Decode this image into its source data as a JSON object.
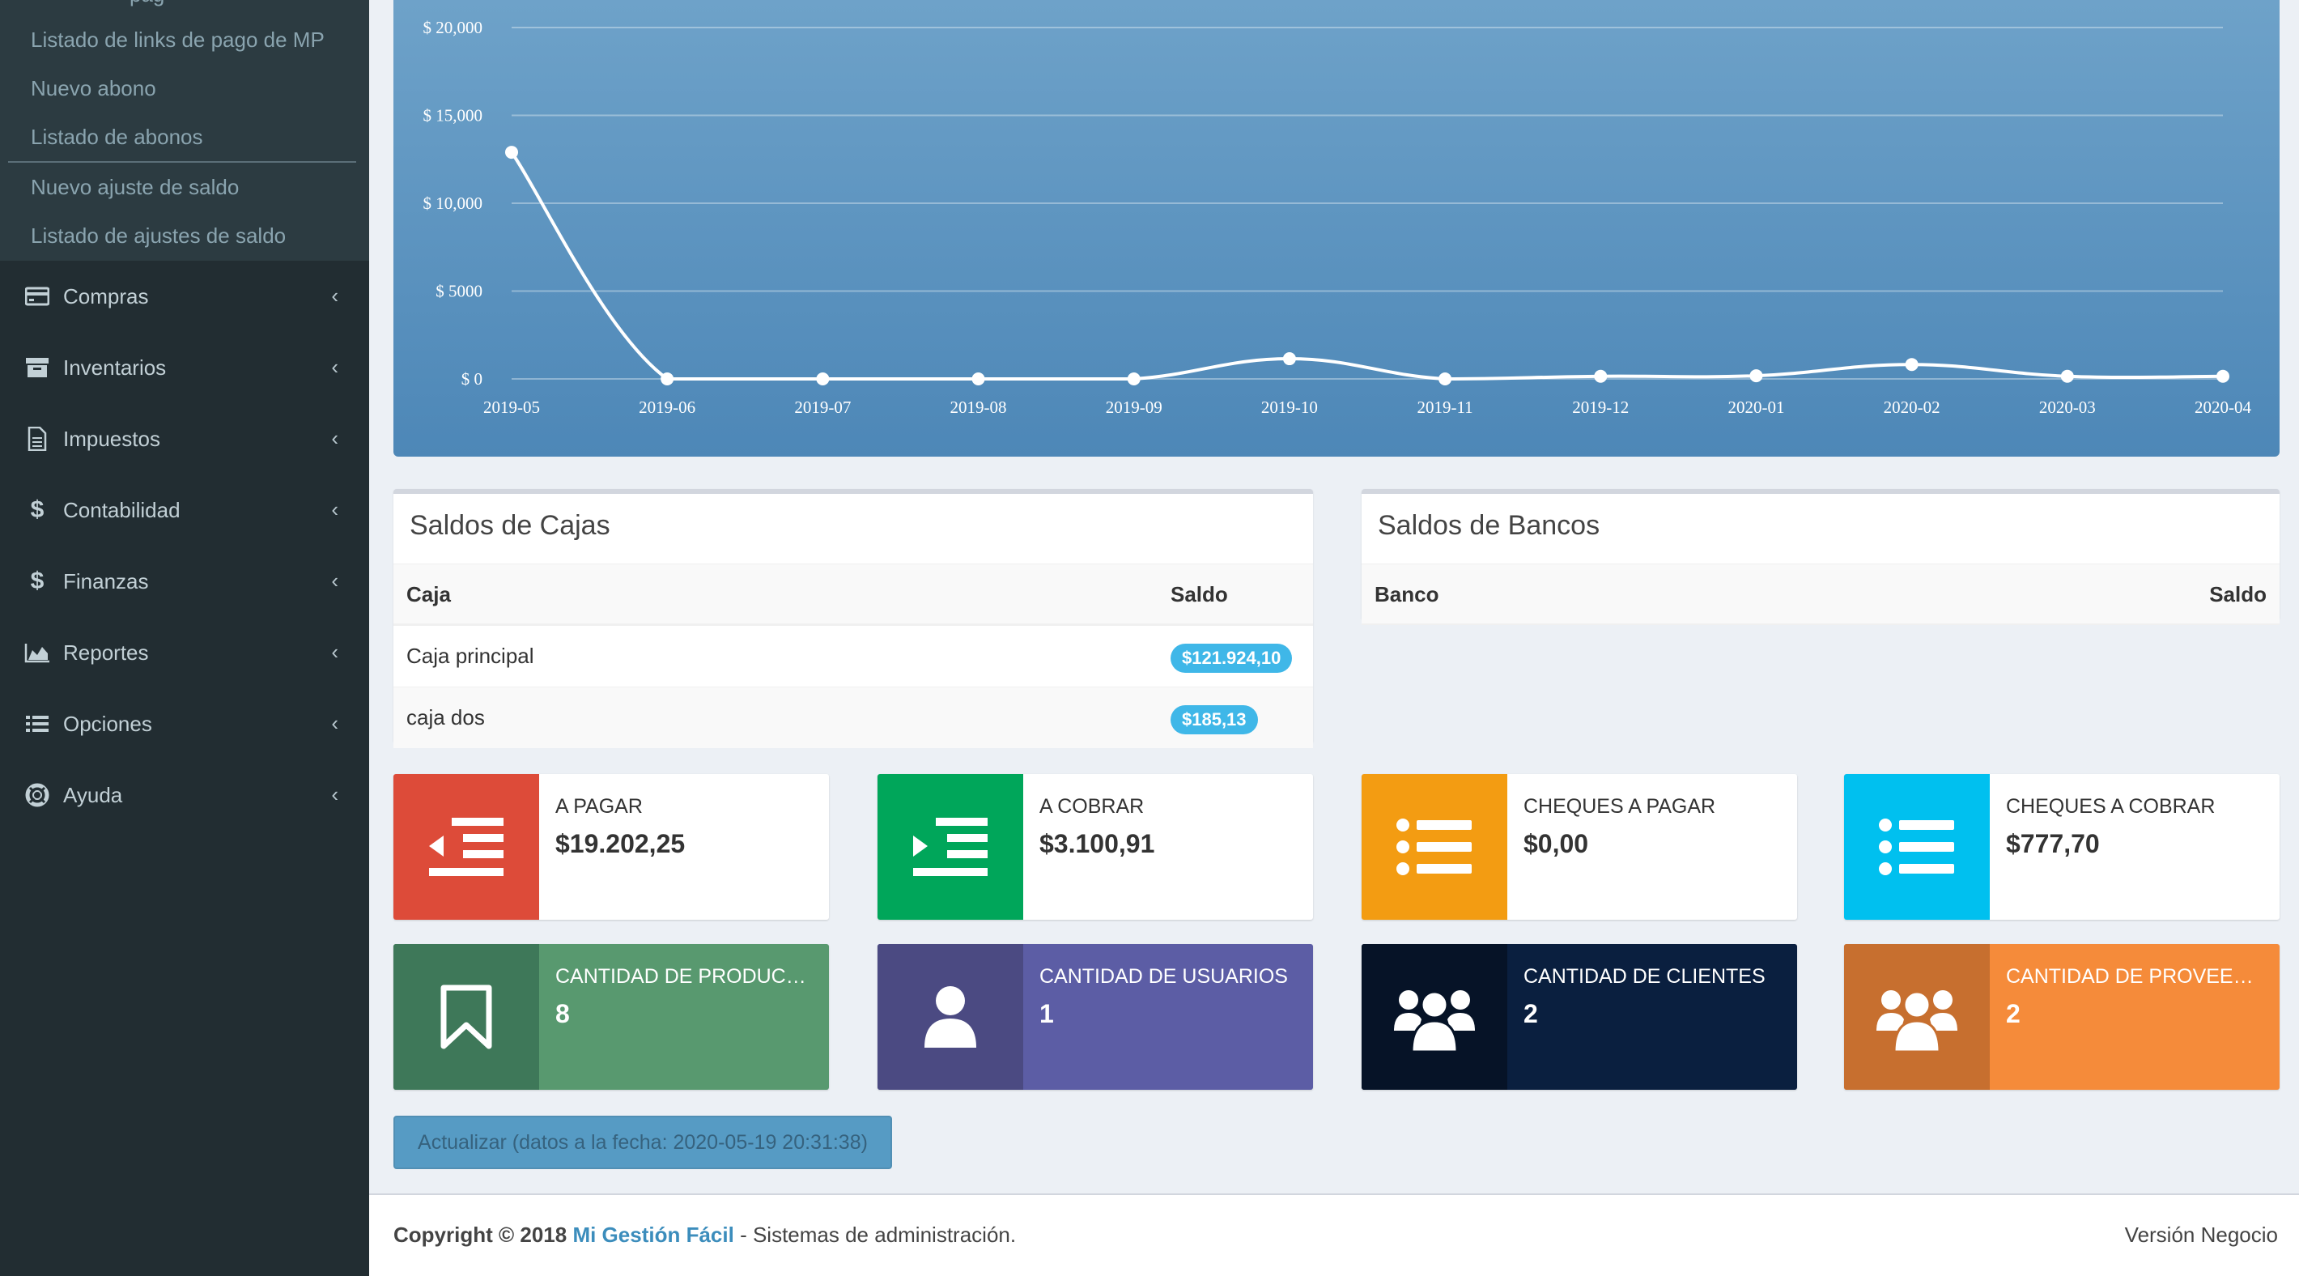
{
  "sidebar": {
    "submenu_partial": "pag",
    "submenu_items": [
      "Listado de links de pago de MP",
      "Nuevo abono",
      "Listado de abonos",
      "Nuevo ajuste de saldo",
      "Listado de ajustes de saldo"
    ],
    "menu": [
      {
        "label": "Compras",
        "icon": "credit-card-icon"
      },
      {
        "label": "Inventarios",
        "icon": "archive-icon"
      },
      {
        "label": "Impuestos",
        "icon": "file-text-icon"
      },
      {
        "label": "Contabilidad",
        "icon": "dollar-icon"
      },
      {
        "label": "Finanzas",
        "icon": "dollar-icon"
      },
      {
        "label": "Reportes",
        "icon": "area-chart-icon"
      },
      {
        "label": "Opciones",
        "icon": "list-icon"
      },
      {
        "label": "Ayuda",
        "icon": "life-ring-icon"
      }
    ]
  },
  "chart_data": {
    "type": "line",
    "categories": [
      "2019-05",
      "2019-06",
      "2019-07",
      "2019-08",
      "2019-09",
      "2019-10",
      "2019-11",
      "2019-12",
      "2020-01",
      "2020-02",
      "2020-03",
      "2020-04"
    ],
    "values": [
      12900,
      0,
      0,
      0,
      0,
      1150,
      0,
      150,
      180,
      820,
      150,
      150
    ],
    "yticks": [
      "$ 0",
      "$ 5000",
      "$ 10,000",
      "$ 15,000",
      "$ 20,000"
    ],
    "ytick_values": [
      0,
      5000,
      10000,
      15000,
      20000
    ],
    "ylim": [
      0,
      20000
    ],
    "grid": true,
    "colors": {
      "line": "#ffffff",
      "grid": "#ffffff"
    }
  },
  "cajas": {
    "title": "Saldos de Cajas",
    "headers": [
      "Caja",
      "Saldo"
    ],
    "rows": [
      {
        "name": "Caja principal",
        "saldo": "$121.924,10"
      },
      {
        "name": "caja dos",
        "saldo": "$185,13"
      }
    ]
  },
  "bancos": {
    "title": "Saldos de Bancos",
    "headers": [
      "Banco",
      "Saldo"
    ]
  },
  "info_boxes": [
    {
      "text": "A PAGAR",
      "number": "$19.202,25",
      "icon": "outdent-icon",
      "color": "#dd4b39"
    },
    {
      "text": "A COBRAR",
      "number": "$3.100,91",
      "icon": "indent-icon",
      "color": "#00a65a"
    },
    {
      "text": "CHEQUES A PAGAR",
      "number": "$0,00",
      "icon": "list-ul-icon",
      "color": "#f39c12"
    },
    {
      "text": "CHEQUES A COBRAR",
      "number": "$777,70",
      "icon": "list-ul-icon",
      "color": "#00c0ef"
    },
    {
      "text": "CANTIDAD DE PRODUCTOS",
      "number": "8",
      "icon": "bookmark-icon",
      "color": "#3d9970",
      "bg": "#4e9a72"
    },
    {
      "text": "CANTIDAD DE USUARIOS",
      "number": "1",
      "icon": "user-icon",
      "color": "#555299",
      "bg": "#5a5ca8"
    },
    {
      "text": "CANTIDAD DE CLIENTES",
      "number": "2",
      "icon": "users-icon",
      "color": "#001f3f",
      "bg": "#0a1f3f"
    },
    {
      "text": "CANTIDAD DE PROVEED…",
      "number": "2",
      "icon": "users-icon",
      "color": "#ff851b",
      "bg": "#f58b3a"
    }
  ],
  "refresh_button": "Actualizar (datos a la fecha: 2020-05-19 20:31:38)",
  "footer": {
    "copyright": "Copyright © 2018",
    "brand": "Mi Gestión Fácil",
    "tagline": "- Sistemas de administración.",
    "version": "Versión Negocio"
  }
}
